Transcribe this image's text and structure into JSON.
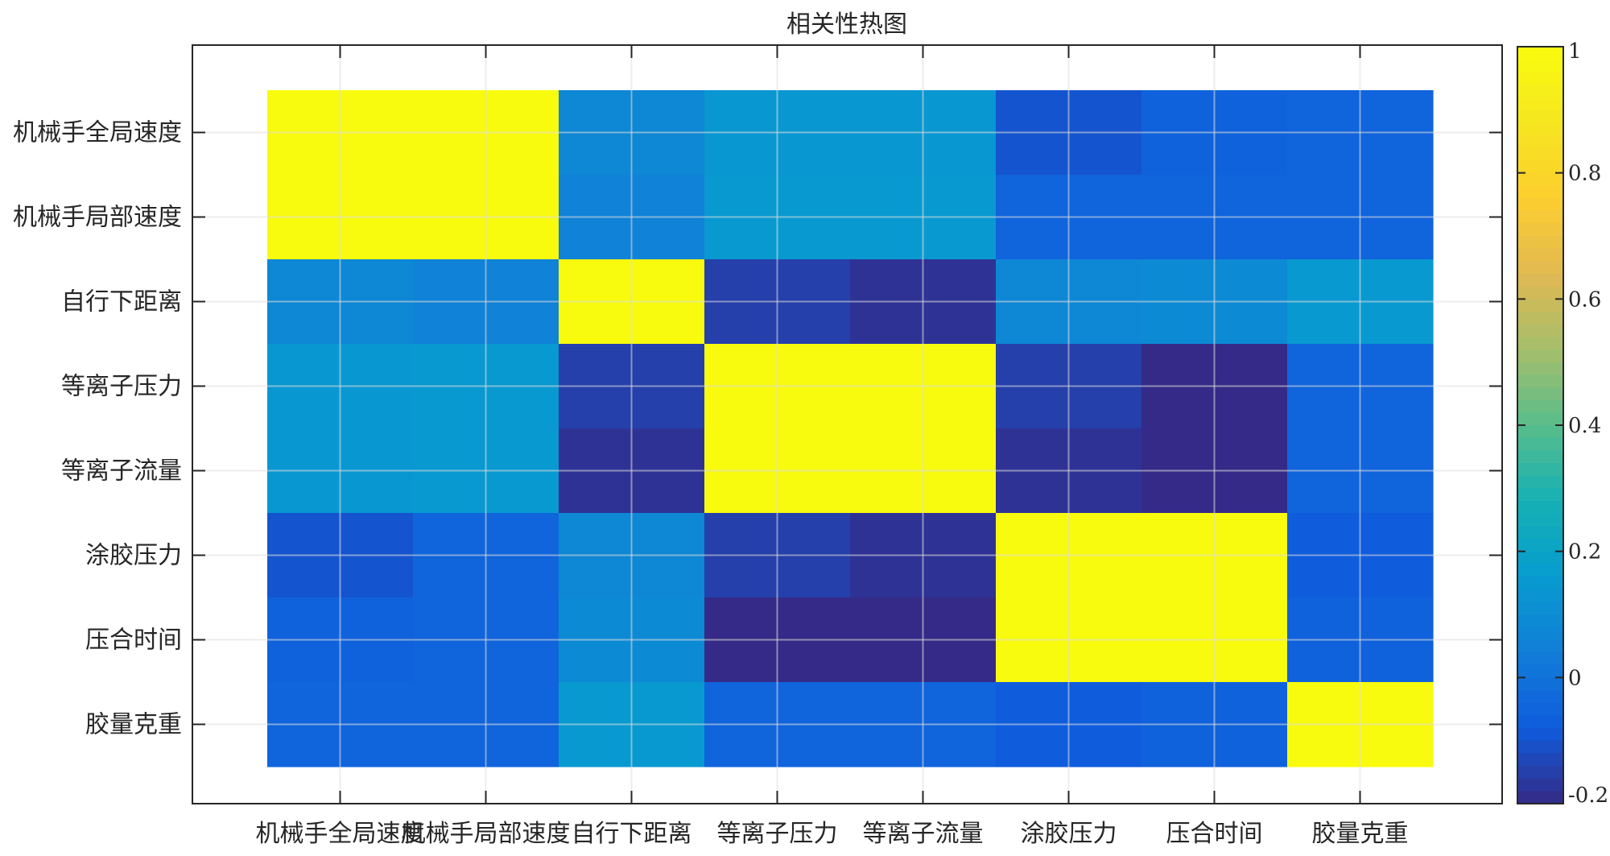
{
  "chart_data": {
    "type": "heatmap",
    "title": "相关性热图",
    "xlabel": "",
    "ylabel": "",
    "x_categories": [
      "机械手全局速度",
      "机械手局部速度",
      "自行下距离",
      "等离子压力",
      "等离子流量",
      "涂胶压力",
      "压合时间",
      "胶量克重"
    ],
    "y_categories": [
      "机械手全局速度",
      "机械手局部速度",
      "自行下距离",
      "等离子压力",
      "等离子流量",
      "涂胶压力",
      "压合时间",
      "胶量克重"
    ],
    "values": [
      [
        1.0,
        1.0,
        0.08,
        0.14,
        0.14,
        -0.1,
        -0.06,
        -0.05
      ],
      [
        1.0,
        1.0,
        0.06,
        0.15,
        0.15,
        -0.05,
        -0.05,
        -0.05
      ],
      [
        0.08,
        0.06,
        1.0,
        -0.15,
        -0.18,
        0.08,
        0.09,
        0.15
      ],
      [
        0.14,
        0.15,
        -0.15,
        1.0,
        1.0,
        -0.15,
        -0.2,
        -0.05
      ],
      [
        0.14,
        0.15,
        -0.18,
        1.0,
        1.0,
        -0.18,
        -0.2,
        -0.05
      ],
      [
        -0.1,
        -0.05,
        0.08,
        -0.15,
        -0.18,
        1.0,
        1.0,
        -0.08
      ],
      [
        -0.06,
        -0.05,
        0.09,
        -0.2,
        -0.2,
        1.0,
        1.0,
        -0.06
      ],
      [
        -0.05,
        -0.05,
        0.15,
        -0.05,
        -0.05,
        -0.08,
        -0.06,
        1.0
      ]
    ],
    "colormap": "parula",
    "clim": [
      -0.2,
      1.0
    ],
    "colorbar": {
      "ticks": [
        1,
        0.8,
        0.6,
        0.4,
        0.2,
        0,
        -0.2
      ],
      "tick_labels": [
        "1",
        "0.8",
        "0.6",
        "0.4",
        "0.2",
        "0",
        "-0.2"
      ],
      "location": "right"
    },
    "grid": true,
    "legend": "none"
  }
}
